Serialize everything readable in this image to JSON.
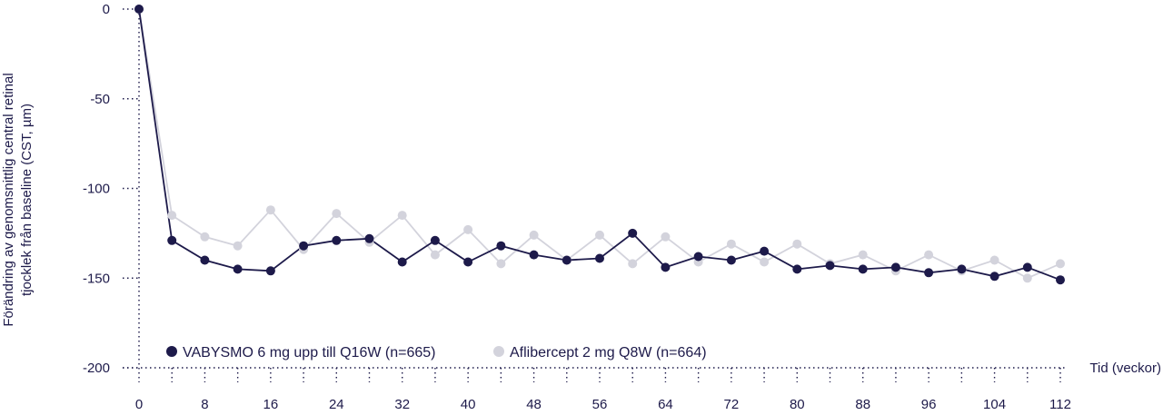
{
  "chart_data": {
    "type": "line",
    "ylabel_line1": "Förändring av genomsnittlig central retinal",
    "ylabel_line2": "tjocklek från baseline (CST, µm)",
    "xlabel": "Tid (veckor)",
    "ylim": [
      -200,
      0
    ],
    "xlim": [
      0,
      112
    ],
    "yticks": [
      0,
      -50,
      -100,
      -150,
      -200
    ],
    "xticks": [
      0,
      8,
      16,
      24,
      32,
      40,
      48,
      56,
      64,
      72,
      80,
      88,
      96,
      104,
      112
    ],
    "grid": false,
    "legend_position": "bottom-left",
    "series": [
      {
        "name": "VABYSMO 6 mg upp till Q16W (n=665)",
        "color": "#1d1a4a",
        "x": [
          0,
          4,
          8,
          12,
          16,
          20,
          24,
          28,
          32,
          36,
          40,
          44,
          48,
          52,
          56,
          60,
          64,
          68,
          72,
          76,
          80,
          84,
          88,
          92,
          96,
          100,
          104,
          108,
          112
        ],
        "y": [
          0,
          -129,
          -140,
          -145,
          -146,
          -132,
          -129,
          -128,
          -141,
          -129,
          -141,
          -132,
          -137,
          -140,
          -139,
          -125,
          -144,
          -138,
          -140,
          -135,
          -145,
          -143,
          -145,
          -144,
          -147,
          -145,
          -149,
          -144,
          -151
        ]
      },
      {
        "name": "Aflibercept 2 mg Q8W (n=664)",
        "color": "#d3d3dc",
        "x": [
          0,
          4,
          8,
          12,
          16,
          20,
          24,
          28,
          32,
          36,
          40,
          44,
          48,
          52,
          56,
          60,
          64,
          68,
          72,
          76,
          80,
          84,
          88,
          92,
          96,
          100,
          104,
          108,
          112
        ],
        "y": [
          0,
          -115,
          -127,
          -132,
          -112,
          -134,
          -114,
          -130,
          -115,
          -137,
          -123,
          -142,
          -126,
          -140,
          -126,
          -142,
          -127,
          -141,
          -131,
          -141,
          -131,
          -142,
          -137,
          -146,
          -137,
          -146,
          -140,
          -150,
          -142
        ]
      }
    ]
  }
}
